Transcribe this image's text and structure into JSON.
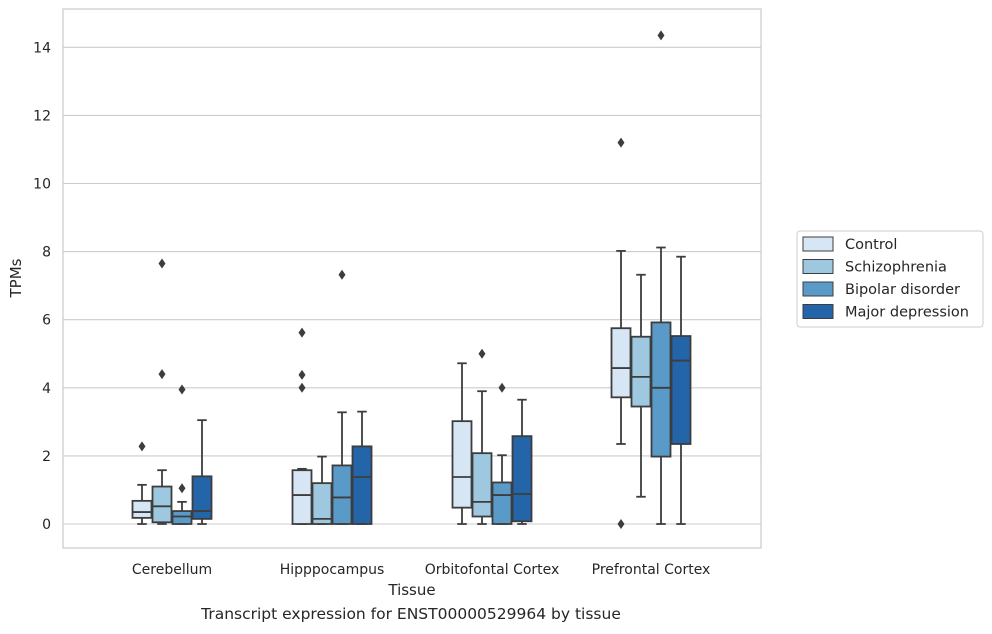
{
  "caption": "Transcript expression for ENST00000529964 by tissue",
  "chart_data": {
    "type": "box",
    "xlabel": "Tissue",
    "ylabel": "TPMs",
    "ylim": [
      -0.7,
      15.1
    ],
    "yticks": [
      0,
      2,
      4,
      6,
      8,
      10,
      12,
      14
    ],
    "grid": "horizontal",
    "legend_position": "right",
    "categories": [
      "Cerebellum",
      "Hipppocampus",
      "Orbitofontal Cortex",
      "Prefrontal Cortex"
    ],
    "series": [
      {
        "name": "Control",
        "color": "#d6e6f4",
        "boxes": [
          {
            "whisker_low": 0.0,
            "q1": 0.18,
            "median": 0.35,
            "q3": 0.68,
            "whisker_high": 1.15,
            "outliers": [
              2.28
            ]
          },
          {
            "whisker_low": 0.0,
            "q1": 0.0,
            "median": 0.85,
            "q3": 1.58,
            "whisker_high": 1.62,
            "outliers": [
              4.0,
              4.38,
              5.62
            ]
          },
          {
            "whisker_low": 0.0,
            "q1": 0.48,
            "median": 1.38,
            "q3": 3.02,
            "whisker_high": 4.72,
            "outliers": []
          },
          {
            "whisker_low": 2.35,
            "q1": 3.72,
            "median": 4.58,
            "q3": 5.75,
            "whisker_high": 8.02,
            "outliers": [
              0.0,
              11.2
            ]
          }
        ]
      },
      {
        "name": "Schizophrenia",
        "color": "#9dc8e0",
        "boxes": [
          {
            "whisker_low": 0.0,
            "q1": 0.05,
            "median": 0.52,
            "q3": 1.1,
            "whisker_high": 1.58,
            "outliers": [
              4.4,
              7.65
            ]
          },
          {
            "whisker_low": 0.0,
            "q1": 0.0,
            "median": 0.15,
            "q3": 1.2,
            "whisker_high": 1.98,
            "outliers": []
          },
          {
            "whisker_low": 0.0,
            "q1": 0.22,
            "median": 0.65,
            "q3": 2.08,
            "whisker_high": 3.9,
            "outliers": [
              5.0
            ]
          },
          {
            "whisker_low": 0.8,
            "q1": 3.45,
            "median": 4.32,
            "q3": 5.5,
            "whisker_high": 7.32,
            "outliers": []
          }
        ]
      },
      {
        "name": "Bipolar disorder",
        "color": "#5a9ac9",
        "boxes": [
          {
            "whisker_low": 0.0,
            "q1": 0.0,
            "median": 0.22,
            "q3": 0.38,
            "whisker_high": 0.65,
            "outliers": [
              1.05,
              3.95
            ]
          },
          {
            "whisker_low": 0.0,
            "q1": 0.0,
            "median": 0.78,
            "q3": 1.72,
            "whisker_high": 3.28,
            "outliers": [
              7.32
            ]
          },
          {
            "whisker_low": 0.0,
            "q1": 0.0,
            "median": 0.85,
            "q3": 1.22,
            "whisker_high": 2.02,
            "outliers": [
              4.0
            ]
          },
          {
            "whisker_low": 0.0,
            "q1": 1.98,
            "median": 4.0,
            "q3": 5.92,
            "whisker_high": 8.12,
            "outliers": [
              14.35
            ]
          }
        ]
      },
      {
        "name": "Major depression",
        "color": "#2464a9",
        "boxes": [
          {
            "whisker_low": 0.0,
            "q1": 0.15,
            "median": 0.38,
            "q3": 1.4,
            "whisker_high": 3.05,
            "outliers": []
          },
          {
            "whisker_low": 0.0,
            "q1": 0.0,
            "median": 1.38,
            "q3": 2.28,
            "whisker_high": 3.3,
            "outliers": []
          },
          {
            "whisker_low": 0.0,
            "q1": 0.08,
            "median": 0.88,
            "q3": 2.58,
            "whisker_high": 3.65,
            "outliers": []
          },
          {
            "whisker_low": 0.0,
            "q1": 2.35,
            "median": 4.8,
            "q3": 5.52,
            "whisker_high": 7.85,
            "outliers": []
          }
        ]
      }
    ]
  }
}
